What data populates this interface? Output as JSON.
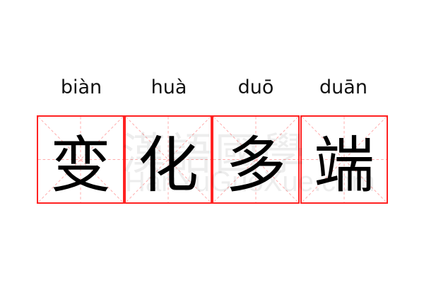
{
  "words": [
    {
      "pinyin": "biàn",
      "char": "变"
    },
    {
      "pinyin": "huà",
      "char": "化"
    },
    {
      "pinyin": "duō",
      "char": "多"
    },
    {
      "pinyin": "duān",
      "char": "端"
    }
  ],
  "watermark": {
    "chinese": "漢語國學",
    "latin": "HanYuGuoXue.com"
  },
  "colors": {
    "grid_border": "#ff2222",
    "guide_lines": "#ffaaaa",
    "text": "#000000"
  }
}
